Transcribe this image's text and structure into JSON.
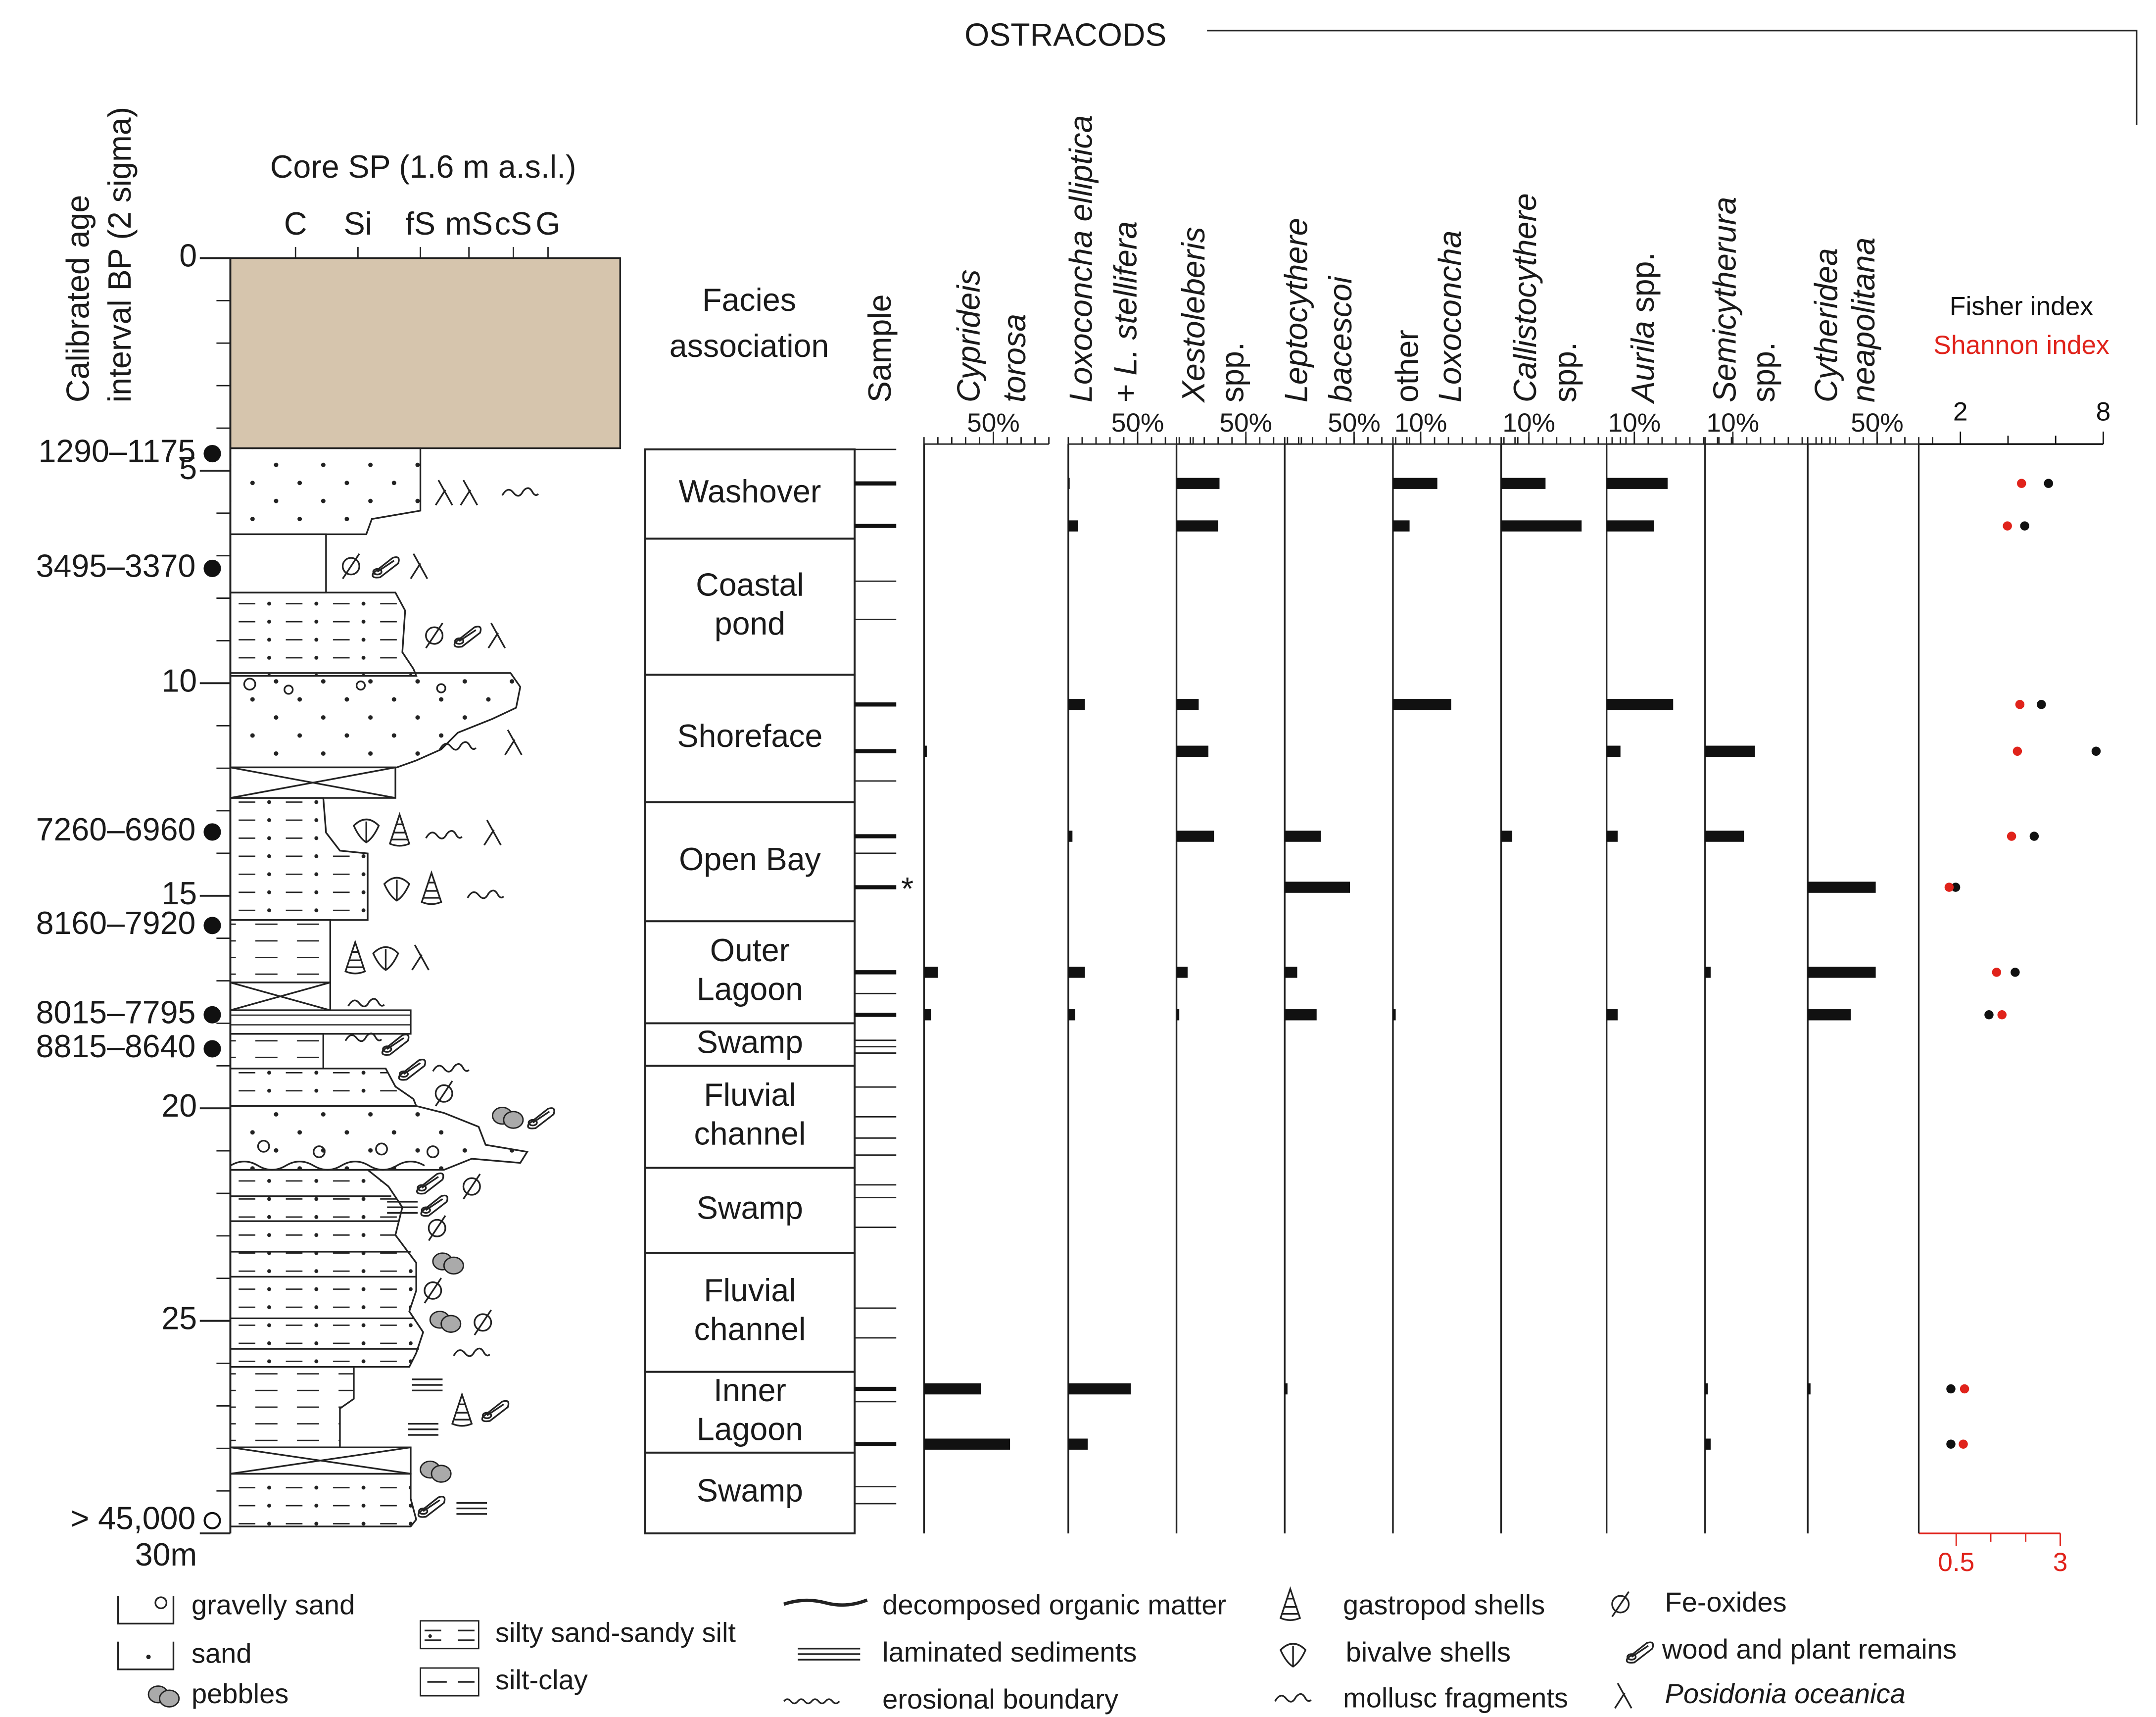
{
  "header": {
    "title": "OSTRACODS"
  },
  "core": {
    "title": "Core SP (1.6 m a.s.l.)",
    "grain_sizes": [
      "C",
      "Si",
      "fS",
      "mS",
      "cS",
      "G"
    ],
    "age_title_lines": [
      "Calibrated age",
      "interval BP (2 sigma)"
    ]
  },
  "depth_axis": {
    "ylim": [
      0,
      30
    ],
    "ticks": [
      0,
      5,
      10,
      15,
      20,
      25,
      {
        "value": 30,
        "label": "30m"
      }
    ],
    "minor_step": 1
  },
  "ages": [
    {
      "depth": 4.6,
      "label": "1290–1175",
      "open": false
    },
    {
      "depth": 7.3,
      "label": "3495–3370",
      "open": false
    },
    {
      "depth": 13.5,
      "label": "7260–6960",
      "open": false
    },
    {
      "depth": 15.7,
      "label": "8160–7920",
      "open": false
    },
    {
      "depth": 17.8,
      "label": "8015–7795",
      "open": false
    },
    {
      "depth": 18.6,
      "label": "8815–8640",
      "open": false
    },
    {
      "depth": 29.7,
      "label": "> 45,000",
      "open": true
    }
  ],
  "facies": {
    "title_lines": [
      "Facies",
      "association"
    ],
    "units": [
      {
        "top": 4.5,
        "bottom": 6.6,
        "lines": [
          "Washover"
        ]
      },
      {
        "top": 6.6,
        "bottom": 9.8,
        "lines": [
          "Coastal",
          "pond"
        ]
      },
      {
        "top": 9.8,
        "bottom": 12.8,
        "lines": [
          "Shoreface"
        ]
      },
      {
        "top": 12.8,
        "bottom": 15.6,
        "lines": [
          "Open Bay"
        ]
      },
      {
        "top": 15.6,
        "bottom": 18.0,
        "lines": [
          "Outer",
          "Lagoon"
        ]
      },
      {
        "top": 18.0,
        "bottom": 19.0,
        "lines": [
          "Swamp"
        ]
      },
      {
        "top": 19.0,
        "bottom": 21.4,
        "lines": [
          "Fluvial",
          "channel"
        ]
      },
      {
        "top": 21.4,
        "bottom": 23.4,
        "lines": [
          "Swamp"
        ]
      },
      {
        "top": 23.4,
        "bottom": 26.2,
        "lines": [
          "Fluvial",
          "channel"
        ]
      },
      {
        "top": 26.2,
        "bottom": 28.1,
        "lines": [
          "Inner",
          "Lagoon"
        ]
      },
      {
        "top": 28.1,
        "bottom": 30.0,
        "lines": [
          "Swamp"
        ]
      }
    ]
  },
  "samples": {
    "title": "Sample",
    "depths": [
      5.3,
      6.3,
      10.5,
      11.6,
      13.6,
      14.8,
      16.8,
      17.8,
      26.6,
      27.9
    ],
    "other_depths": [
      4.5,
      7.6,
      8.5,
      12.3,
      14.0,
      17.3,
      18.4,
      18.55,
      18.7,
      19.5,
      20.2,
      20.7,
      21.1,
      21.8,
      22.1,
      22.8,
      24.7,
      25.4,
      26.9,
      28.9,
      29.3
    ],
    "flag": {
      "index": 5,
      "label": "*"
    }
  },
  "taxa": [
    {
      "lines": [
        [
          {
            "t": "Cyprideis",
            "i": true
          }
        ],
        [
          {
            "t": "torosa",
            "i": true
          }
        ]
      ],
      "xlim": [
        0,
        90
      ],
      "tick_step": 10,
      "scale_tick": {
        "value": 50,
        "label": "50%"
      },
      "values": [
        0,
        0,
        0,
        2,
        0,
        0,
        10,
        5,
        41,
        62
      ]
    },
    {
      "lines": [
        [
          {
            "t": "Loxoconcha elliptica",
            "i": true
          }
        ],
        [
          {
            "t": "+",
            "i": false
          },
          {
            "t": "L. stellifera",
            "i": true
          }
        ]
      ],
      "xlim": [
        0,
        90
      ],
      "tick_step": 10,
      "scale_tick": {
        "value": 50,
        "label": "50%"
      },
      "values": [
        1,
        7,
        12,
        0,
        3,
        0,
        12,
        5,
        45,
        14
      ]
    },
    {
      "lines": [
        [
          {
            "t": "Xestoleberis",
            "i": true
          }
        ],
        [
          {
            "t": "spp.",
            "i": false
          }
        ]
      ],
      "xlim": [
        0,
        90
      ],
      "tick_step": 10,
      "scale_tick": {
        "value": 50,
        "label": "50%"
      },
      "values": [
        31,
        30,
        16,
        23,
        27,
        0,
        8,
        2,
        0,
        0
      ]
    },
    {
      "lines": [
        [
          {
            "t": "Leptocythere",
            "i": true
          }
        ],
        [
          {
            "t": "bacescoi",
            "i": true
          }
        ]
      ],
      "xlim": [
        0,
        90
      ],
      "tick_step": 10,
      "scale_tick": {
        "value": 50,
        "label": "50%"
      },
      "values": [
        0,
        0,
        0,
        0,
        26,
        47,
        9,
        23,
        2,
        0
      ]
    },
    {
      "lines": [
        [
          {
            "t": "other",
            "i": false
          }
        ],
        [
          {
            "t": "Loxoconcha",
            "i": true
          }
        ]
      ],
      "xlim": [
        0,
        45
      ],
      "tick_step": 5,
      "scale_tick": {
        "value": 10,
        "label": "10%"
      },
      "values": [
        16,
        6,
        21,
        0,
        0,
        0,
        0,
        1,
        0,
        0
      ]
    },
    {
      "lines": [
        [
          {
            "t": "Callistocythere",
            "i": true
          }
        ],
        [
          {
            "t": "spp.",
            "i": false
          }
        ]
      ],
      "xlim": [
        0,
        45
      ],
      "tick_step": 5,
      "scale_tick": {
        "value": 10,
        "label": "10%"
      },
      "values": [
        16,
        29,
        0,
        0,
        4,
        0,
        0,
        0,
        0,
        0
      ]
    },
    {
      "lines": [
        [
          {
            "t": "Aurila",
            "i": true
          },
          {
            "t": "spp.",
            "i": false
          }
        ]
      ],
      "xlim": [
        0,
        45
      ],
      "tick_step": 5,
      "scale_tick": {
        "value": 10,
        "label": "10%"
      },
      "values": [
        22,
        17,
        24,
        5,
        4,
        0,
        0,
        4,
        0,
        0
      ]
    },
    {
      "lines": [
        [
          {
            "t": "Semicytherura",
            "i": true
          }
        ],
        [
          {
            "t": "spp.",
            "i": false
          }
        ]
      ],
      "xlim": [
        0,
        45
      ],
      "tick_step": 5,
      "scale_tick": {
        "value": 10,
        "label": "10%"
      },
      "values": [
        0,
        0,
        0,
        18,
        14,
        0,
        2,
        0,
        1,
        2
      ]
    },
    {
      "lines": [
        [
          {
            "t": "Cytheridea",
            "i": true
          }
        ],
        [
          {
            "t": "neapolitana",
            "i": true
          }
        ]
      ],
      "xlim": [
        0,
        90
      ],
      "tick_step": 10,
      "scale_tick": {
        "value": 50,
        "label": "50%"
      },
      "values": [
        0,
        0,
        0,
        0,
        0,
        49,
        49,
        31,
        2,
        0
      ]
    }
  ],
  "indices": {
    "fisher": {
      "name": "Fisher index",
      "color": "#111111",
      "xlim": [
        0.25,
        8
      ],
      "ticks": [
        2,
        8
      ],
      "minor_ticks": [
        4,
        6
      ],
      "values": [
        5.7,
        4.7,
        5.4,
        7.7,
        5.1,
        1.8,
        4.3,
        3.2,
        1.6,
        1.6
      ]
    },
    "shannon": {
      "name": "Shannon index",
      "color": "#e0231b",
      "xlim": [
        -0.4,
        3
      ],
      "ticks": [
        0.5,
        3
      ],
      "minor_ticks": [
        1.33,
        2.17
      ],
      "values": [
        2.07,
        1.73,
        2.03,
        1.97,
        1.83,
        0.33,
        1.47,
        1.6,
        0.7,
        0.67
      ]
    }
  },
  "legend": [
    "gravelly sand",
    "sand",
    "pebbles",
    "silty sand-sandy silt",
    "silt-clay",
    "decomposed organic matter",
    "laminated sediments",
    "erosional boundary",
    "gastropod shells",
    "bivalve shells",
    "mollusc fragments",
    "Fe-oxides",
    "wood and plant remains",
    "Posidonia oceanica"
  ]
}
